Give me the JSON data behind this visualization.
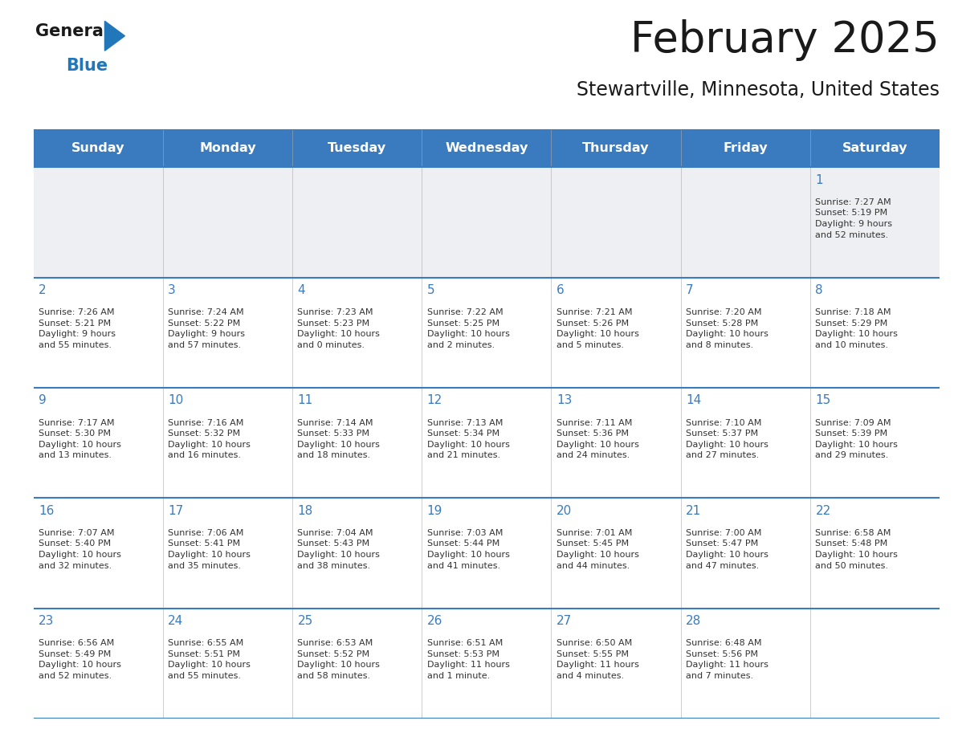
{
  "title": "February 2025",
  "subtitle": "Stewartville, Minnesota, United States",
  "header_bg": "#3a7bbf",
  "header_text": "#ffffff",
  "row_bg_week1": "#eeeff2",
  "row_bg_other": "#ffffff",
  "separator_color": "#3a7bbf",
  "grid_line_color": "#cccccc",
  "day_headers": [
    "Sunday",
    "Monday",
    "Tuesday",
    "Wednesday",
    "Thursday",
    "Friday",
    "Saturday"
  ],
  "calendar": [
    [
      {
        "day": null,
        "info": null
      },
      {
        "day": null,
        "info": null
      },
      {
        "day": null,
        "info": null
      },
      {
        "day": null,
        "info": null
      },
      {
        "day": null,
        "info": null
      },
      {
        "day": null,
        "info": null
      },
      {
        "day": "1",
        "info": "Sunrise: 7:27 AM\nSunset: 5:19 PM\nDaylight: 9 hours\nand 52 minutes."
      }
    ],
    [
      {
        "day": "2",
        "info": "Sunrise: 7:26 AM\nSunset: 5:21 PM\nDaylight: 9 hours\nand 55 minutes."
      },
      {
        "day": "3",
        "info": "Sunrise: 7:24 AM\nSunset: 5:22 PM\nDaylight: 9 hours\nand 57 minutes."
      },
      {
        "day": "4",
        "info": "Sunrise: 7:23 AM\nSunset: 5:23 PM\nDaylight: 10 hours\nand 0 minutes."
      },
      {
        "day": "5",
        "info": "Sunrise: 7:22 AM\nSunset: 5:25 PM\nDaylight: 10 hours\nand 2 minutes."
      },
      {
        "day": "6",
        "info": "Sunrise: 7:21 AM\nSunset: 5:26 PM\nDaylight: 10 hours\nand 5 minutes."
      },
      {
        "day": "7",
        "info": "Sunrise: 7:20 AM\nSunset: 5:28 PM\nDaylight: 10 hours\nand 8 minutes."
      },
      {
        "day": "8",
        "info": "Sunrise: 7:18 AM\nSunset: 5:29 PM\nDaylight: 10 hours\nand 10 minutes."
      }
    ],
    [
      {
        "day": "9",
        "info": "Sunrise: 7:17 AM\nSunset: 5:30 PM\nDaylight: 10 hours\nand 13 minutes."
      },
      {
        "day": "10",
        "info": "Sunrise: 7:16 AM\nSunset: 5:32 PM\nDaylight: 10 hours\nand 16 minutes."
      },
      {
        "day": "11",
        "info": "Sunrise: 7:14 AM\nSunset: 5:33 PM\nDaylight: 10 hours\nand 18 minutes."
      },
      {
        "day": "12",
        "info": "Sunrise: 7:13 AM\nSunset: 5:34 PM\nDaylight: 10 hours\nand 21 minutes."
      },
      {
        "day": "13",
        "info": "Sunrise: 7:11 AM\nSunset: 5:36 PM\nDaylight: 10 hours\nand 24 minutes."
      },
      {
        "day": "14",
        "info": "Sunrise: 7:10 AM\nSunset: 5:37 PM\nDaylight: 10 hours\nand 27 minutes."
      },
      {
        "day": "15",
        "info": "Sunrise: 7:09 AM\nSunset: 5:39 PM\nDaylight: 10 hours\nand 29 minutes."
      }
    ],
    [
      {
        "day": "16",
        "info": "Sunrise: 7:07 AM\nSunset: 5:40 PM\nDaylight: 10 hours\nand 32 minutes."
      },
      {
        "day": "17",
        "info": "Sunrise: 7:06 AM\nSunset: 5:41 PM\nDaylight: 10 hours\nand 35 minutes."
      },
      {
        "day": "18",
        "info": "Sunrise: 7:04 AM\nSunset: 5:43 PM\nDaylight: 10 hours\nand 38 minutes."
      },
      {
        "day": "19",
        "info": "Sunrise: 7:03 AM\nSunset: 5:44 PM\nDaylight: 10 hours\nand 41 minutes."
      },
      {
        "day": "20",
        "info": "Sunrise: 7:01 AM\nSunset: 5:45 PM\nDaylight: 10 hours\nand 44 minutes."
      },
      {
        "day": "21",
        "info": "Sunrise: 7:00 AM\nSunset: 5:47 PM\nDaylight: 10 hours\nand 47 minutes."
      },
      {
        "day": "22",
        "info": "Sunrise: 6:58 AM\nSunset: 5:48 PM\nDaylight: 10 hours\nand 50 minutes."
      }
    ],
    [
      {
        "day": "23",
        "info": "Sunrise: 6:56 AM\nSunset: 5:49 PM\nDaylight: 10 hours\nand 52 minutes."
      },
      {
        "day": "24",
        "info": "Sunrise: 6:55 AM\nSunset: 5:51 PM\nDaylight: 10 hours\nand 55 minutes."
      },
      {
        "day": "25",
        "info": "Sunrise: 6:53 AM\nSunset: 5:52 PM\nDaylight: 10 hours\nand 58 minutes."
      },
      {
        "day": "26",
        "info": "Sunrise: 6:51 AM\nSunset: 5:53 PM\nDaylight: 11 hours\nand 1 minute."
      },
      {
        "day": "27",
        "info": "Sunrise: 6:50 AM\nSunset: 5:55 PM\nDaylight: 11 hours\nand 4 minutes."
      },
      {
        "day": "28",
        "info": "Sunrise: 6:48 AM\nSunset: 5:56 PM\nDaylight: 11 hours\nand 7 minutes."
      },
      {
        "day": null,
        "info": null
      }
    ]
  ],
  "day_num_color": "#3a7bbf",
  "cell_text_color": "#333333",
  "cell_font_size": 8.0,
  "day_num_font_size": 11.0,
  "header_font_size": 11.5,
  "title_font_size": 38,
  "subtitle_font_size": 17,
  "title_color": "#1a1a1a",
  "subtitle_color": "#1a1a1a"
}
